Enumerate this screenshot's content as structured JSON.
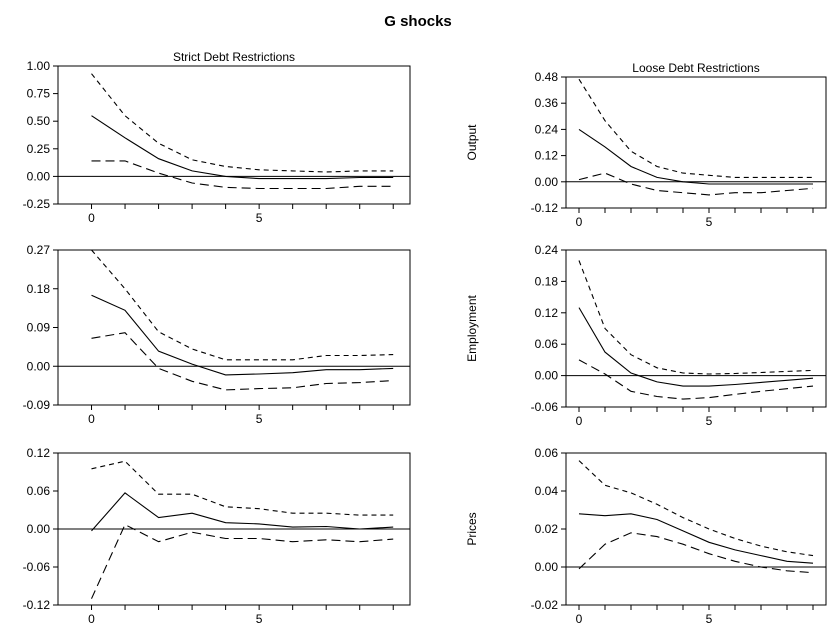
{
  "title": "G shocks",
  "chart_data": [
    {
      "type": "line",
      "id": "strict-output",
      "title": "Strict Debt Restrictions",
      "ylabel": "",
      "x": [
        0,
        1,
        2,
        3,
        4,
        5,
        6,
        7,
        8,
        9
      ],
      "xlim": [
        -1,
        9.5
      ],
      "xticks": [
        0,
        5
      ],
      "ylim": [
        -0.25,
        1.0
      ],
      "yticks": [
        {
          "v": -0.25,
          "label": "-0.25"
        },
        {
          "v": 0,
          "label": "0.00"
        },
        {
          "v": 0.25,
          "label": "0.25"
        },
        {
          "v": 0.5,
          "label": "0.50"
        },
        {
          "v": 0.75,
          "label": "0.75"
        },
        {
          "v": 1.0,
          "label": "1.00"
        }
      ],
      "series": [
        {
          "role": "upper",
          "values": [
            0.93,
            0.55,
            0.3,
            0.15,
            0.09,
            0.06,
            0.05,
            0.04,
            0.05,
            0.05
          ]
        },
        {
          "role": "median",
          "values": [
            0.55,
            0.35,
            0.16,
            0.05,
            0.0,
            -0.02,
            -0.02,
            -0.02,
            -0.01,
            -0.01
          ]
        },
        {
          "role": "lower",
          "values": [
            0.14,
            0.14,
            0.03,
            -0.06,
            -0.1,
            -0.11,
            -0.11,
            -0.11,
            -0.09,
            -0.09
          ]
        }
      ]
    },
    {
      "type": "line",
      "id": "loose-output",
      "title": "Loose Debt Restrictions",
      "ylabel": "Output",
      "x": [
        0,
        1,
        2,
        3,
        4,
        5,
        6,
        7,
        8,
        9
      ],
      "xlim": [
        -0.5,
        9.5
      ],
      "xticks": [
        0,
        5
      ],
      "ylim": [
        -0.12,
        0.48
      ],
      "yticks": [
        {
          "v": -0.12,
          "label": "-0.12"
        },
        {
          "v": 0,
          "label": "0.00"
        },
        {
          "v": 0.12,
          "label": "0.12"
        },
        {
          "v": 0.24,
          "label": "0.24"
        },
        {
          "v": 0.36,
          "label": "0.36"
        },
        {
          "v": 0.48,
          "label": "0.48"
        }
      ],
      "series": [
        {
          "role": "upper",
          "values": [
            0.47,
            0.28,
            0.14,
            0.07,
            0.04,
            0.03,
            0.02,
            0.02,
            0.02,
            0.02
          ]
        },
        {
          "role": "median",
          "values": [
            0.24,
            0.16,
            0.07,
            0.02,
            0.0,
            -0.01,
            -0.01,
            -0.01,
            -0.01,
            -0.01
          ]
        },
        {
          "role": "lower",
          "values": [
            0.01,
            0.04,
            -0.01,
            -0.04,
            -0.05,
            -0.06,
            -0.05,
            -0.05,
            -0.04,
            -0.03
          ]
        }
      ]
    },
    {
      "type": "line",
      "id": "strict-employment",
      "title": "",
      "ylabel": "",
      "x": [
        0,
        1,
        2,
        3,
        4,
        5,
        6,
        7,
        8,
        9
      ],
      "xlim": [
        -1,
        9.5
      ],
      "xticks": [
        0,
        5
      ],
      "ylim": [
        -0.09,
        0.27
      ],
      "yticks": [
        {
          "v": -0.09,
          "label": "-0.09"
        },
        {
          "v": 0,
          "label": "0.00"
        },
        {
          "v": 0.09,
          "label": "0.09"
        },
        {
          "v": 0.18,
          "label": "0.18"
        },
        {
          "v": 0.27,
          "label": "0.27"
        }
      ],
      "series": [
        {
          "role": "upper",
          "values": [
            0.27,
            0.18,
            0.08,
            0.04,
            0.015,
            0.015,
            0.015,
            0.025,
            0.025,
            0.027
          ]
        },
        {
          "role": "median",
          "values": [
            0.165,
            0.13,
            0.035,
            0.005,
            -0.02,
            -0.018,
            -0.015,
            -0.008,
            -0.008,
            -0.005
          ]
        },
        {
          "role": "lower",
          "values": [
            0.065,
            0.078,
            -0.005,
            -0.035,
            -0.055,
            -0.052,
            -0.05,
            -0.04,
            -0.038,
            -0.033
          ]
        }
      ]
    },
    {
      "type": "line",
      "id": "loose-employment",
      "title": "",
      "ylabel": "Employment",
      "x": [
        0,
        1,
        2,
        3,
        4,
        5,
        6,
        7,
        8,
        9
      ],
      "xlim": [
        -0.5,
        9.5
      ],
      "xticks": [
        0,
        5
      ],
      "ylim": [
        -0.06,
        0.24
      ],
      "yticks": [
        {
          "v": -0.06,
          "label": "-0.06"
        },
        {
          "v": 0,
          "label": "0.00"
        },
        {
          "v": 0.06,
          "label": "0.06"
        },
        {
          "v": 0.12,
          "label": "0.12"
        },
        {
          "v": 0.18,
          "label": "0.18"
        },
        {
          "v": 0.24,
          "label": "0.24"
        }
      ],
      "series": [
        {
          "role": "upper",
          "values": [
            0.22,
            0.09,
            0.04,
            0.015,
            0.005,
            0.003,
            0.004,
            0.006,
            0.008,
            0.01
          ]
        },
        {
          "role": "median",
          "values": [
            0.13,
            0.045,
            0.005,
            -0.012,
            -0.02,
            -0.02,
            -0.017,
            -0.013,
            -0.009,
            -0.005
          ]
        },
        {
          "role": "lower",
          "values": [
            0.03,
            0.003,
            -0.03,
            -0.04,
            -0.045,
            -0.042,
            -0.036,
            -0.03,
            -0.025,
            -0.02
          ]
        }
      ]
    },
    {
      "type": "line",
      "id": "strict-prices",
      "title": "",
      "ylabel": "",
      "x": [
        0,
        1,
        2,
        3,
        4,
        5,
        6,
        7,
        8,
        9
      ],
      "xlim": [
        -1,
        9.5
      ],
      "xticks": [
        0,
        5
      ],
      "ylim": [
        -0.12,
        0.12
      ],
      "yticks": [
        {
          "v": -0.12,
          "label": "-0.12"
        },
        {
          "v": -0.06,
          "label": "-0.06"
        },
        {
          "v": 0,
          "label": "0.00"
        },
        {
          "v": 0.06,
          "label": "0.06"
        },
        {
          "v": 0.12,
          "label": "0.12"
        }
      ],
      "series": [
        {
          "role": "upper",
          "values": [
            0.095,
            0.107,
            0.055,
            0.055,
            0.035,
            0.032,
            0.025,
            0.025,
            0.022,
            0.022
          ]
        },
        {
          "role": "median",
          "values": [
            -0.003,
            0.057,
            0.018,
            0.025,
            0.01,
            0.008,
            0.003,
            0.004,
            0.0,
            0.003
          ]
        },
        {
          "role": "lower",
          "values": [
            -0.11,
            0.007,
            -0.02,
            -0.005,
            -0.015,
            -0.015,
            -0.02,
            -0.017,
            -0.02,
            -0.016
          ]
        }
      ]
    },
    {
      "type": "line",
      "id": "loose-prices",
      "title": "",
      "ylabel": "Prices",
      "x": [
        0,
        1,
        2,
        3,
        4,
        5,
        6,
        7,
        8,
        9
      ],
      "xlim": [
        -0.5,
        9.5
      ],
      "xticks": [
        0,
        5
      ],
      "ylim": [
        -0.02,
        0.06
      ],
      "yticks": [
        {
          "v": -0.02,
          "label": "-0.02"
        },
        {
          "v": 0,
          "label": "0.00"
        },
        {
          "v": 0.02,
          "label": "0.02"
        },
        {
          "v": 0.04,
          "label": "0.04"
        },
        {
          "v": 0.06,
          "label": "0.06"
        }
      ],
      "series": [
        {
          "role": "upper",
          "values": [
            0.056,
            0.043,
            0.039,
            0.033,
            0.026,
            0.02,
            0.015,
            0.011,
            0.008,
            0.006
          ]
        },
        {
          "role": "median",
          "values": [
            0.028,
            0.027,
            0.028,
            0.025,
            0.019,
            0.013,
            0.009,
            0.006,
            0.003,
            0.002
          ]
        },
        {
          "role": "lower",
          "values": [
            -0.001,
            0.012,
            0.018,
            0.016,
            0.012,
            0.007,
            0.003,
            0.0,
            -0.002,
            -0.003
          ]
        }
      ]
    }
  ]
}
